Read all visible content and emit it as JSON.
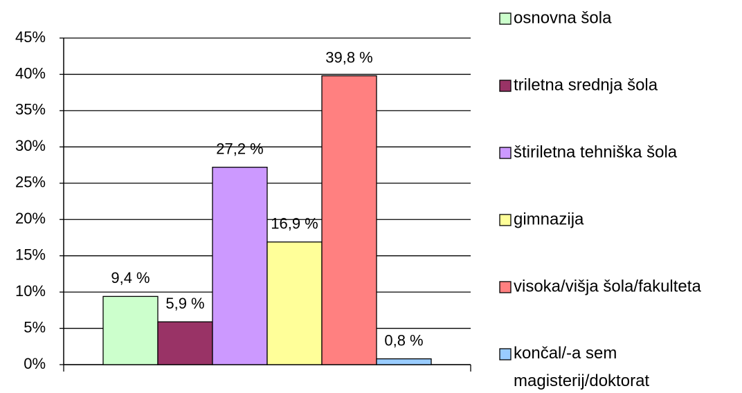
{
  "chart_data": {
    "type": "bar",
    "categories": [
      null
    ],
    "series": [
      {
        "name": "osnovna šola",
        "color": "#ccffcc",
        "values": [
          9.4
        ],
        "value_labels": [
          "9,4 %"
        ]
      },
      {
        "name": "triletna srednja šola",
        "color": "#993366",
        "values": [
          5.9
        ],
        "value_labels": [
          "5,9 %"
        ]
      },
      {
        "name": "štiriletna tehniška šola",
        "color": "#cc99ff",
        "values": [
          27.2
        ],
        "value_labels": [
          "27,2 %"
        ]
      },
      {
        "name": "gimnazija",
        "color": "#ffff99",
        "values": [
          16.9
        ],
        "value_labels": [
          "16,9 %"
        ]
      },
      {
        "name": "visoka/višja šola/fakulteta",
        "color": "#ff8080",
        "values": [
          39.8
        ],
        "value_labels": [
          "39,8 %"
        ]
      },
      {
        "name": "končal/-a sem magisterij/doktorat",
        "color": "#99ccff",
        "values": [
          0.8
        ],
        "value_labels": [
          "0,8 %"
        ]
      }
    ],
    "ylim": [
      0,
      45
    ],
    "yticks": [
      {
        "value": 0,
        "label": "0%"
      },
      {
        "value": 5,
        "label": "5%"
      },
      {
        "value": 10,
        "label": "10%"
      },
      {
        "value": 15,
        "label": "15%"
      },
      {
        "value": 20,
        "label": "20%"
      },
      {
        "value": 25,
        "label": "25%"
      },
      {
        "value": 30,
        "label": "30%"
      },
      {
        "value": 35,
        "label": "35%"
      },
      {
        "value": 40,
        "label": "40%"
      },
      {
        "value": 45,
        "label": "45%"
      }
    ],
    "grid": true,
    "legend": "right"
  }
}
